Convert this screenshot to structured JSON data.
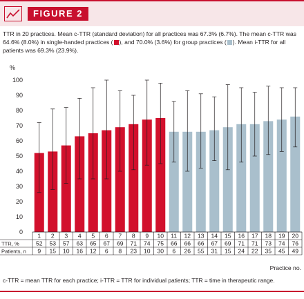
{
  "header": {
    "figure_label": "FIGURE 2"
  },
  "caption": {
    "part1": "TTR in 20 practices. Mean c-TTR (standard deviation) for all practices was 67.3% (6.7%). The mean c-TTR was 64.6% (8.0%) in single-handed practices (",
    "part2": "), and 70.0% (3.6%) for group practices (",
    "part3": "). Mean i-TTR for all patients was 69.3% (23.9%)."
  },
  "footer": "c-TTR = mean TTR for each practice; i-TTR = TTR for individual patients; TTR = time in therapeutic range.",
  "colors": {
    "single": "#d2102c",
    "group": "#a9bfcc",
    "accent": "#c8102e"
  },
  "chart_data": {
    "type": "bar",
    "ylabel": "%",
    "xlabel": "Practice no.",
    "ylim": [
      0,
      100
    ],
    "yticks": [
      0,
      10,
      20,
      30,
      40,
      50,
      60,
      70,
      80,
      90,
      100
    ],
    "categories": [
      "1",
      "2",
      "3",
      "4",
      "5",
      "6",
      "7",
      "8",
      "9",
      "10",
      "11",
      "12",
      "13",
      "14",
      "15",
      "16",
      "17",
      "18",
      "19",
      "20"
    ],
    "values": [
      52,
      53,
      57,
      63,
      65,
      67,
      69,
      71,
      74,
      75,
      66,
      66,
      66,
      67,
      69,
      71,
      71,
      73,
      74,
      76
    ],
    "error_low": [
      26,
      28,
      32,
      35,
      35,
      35,
      40,
      41,
      44,
      45,
      46,
      40,
      42,
      47,
      41,
      46,
      50,
      51,
      53,
      56
    ],
    "error_high": [
      72,
      81,
      82,
      88,
      95,
      100,
      93,
      90,
      100,
      98,
      86,
      93,
      91,
      89,
      97,
      95,
      92,
      96,
      95,
      95
    ],
    "group": [
      "single",
      "single",
      "single",
      "single",
      "single",
      "single",
      "single",
      "single",
      "single",
      "single",
      "group",
      "group",
      "group",
      "group",
      "group",
      "group",
      "group",
      "group",
      "group",
      "group"
    ],
    "table": {
      "rows": [
        {
          "label": "TTR, %",
          "values": [
            "52",
            "53",
            "57",
            "63",
            "65",
            "67",
            "69",
            "71",
            "74",
            "75",
            "66",
            "66",
            "66",
            "67",
            "69",
            "71",
            "71",
            "73",
            "74",
            "76"
          ]
        },
        {
          "label": "Patients, n",
          "values": [
            "9",
            "15",
            "10",
            "16",
            "12",
            "6",
            "8",
            "23",
            "10",
            "30",
            "6",
            "26",
            "55",
            "31",
            "15",
            "24",
            "22",
            "35",
            "45",
            "49"
          ]
        }
      ]
    }
  }
}
